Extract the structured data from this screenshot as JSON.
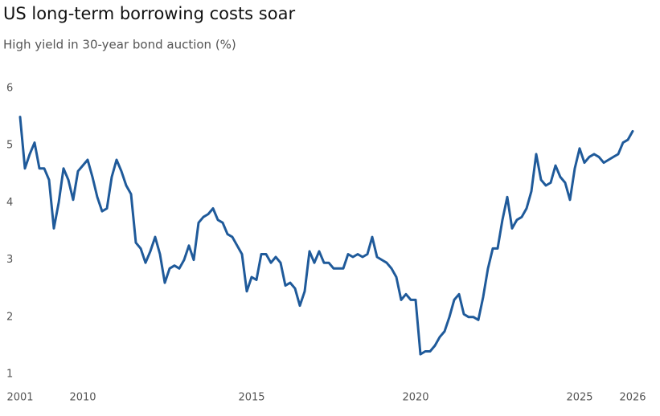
{
  "chart_data": {
    "type": "line",
    "title": "US long-term borrowing costs soar",
    "subtitle": "High yield in 30-year bond auction (%)",
    "categories": [
      "2001",
      null,
      null,
      null,
      null,
      null,
      null,
      null,
      null,
      null,
      null,
      null,
      null,
      "2010",
      null,
      null,
      null,
      null,
      null,
      null,
      null,
      null,
      null,
      null,
      null,
      null,
      null,
      null,
      null,
      null,
      null,
      null,
      null,
      null,
      null,
      null,
      null,
      null,
      null,
      null,
      null,
      null,
      null,
      null,
      null,
      null,
      null,
      null,
      "2015",
      null,
      null,
      null,
      null,
      null,
      null,
      null,
      null,
      null,
      null,
      null,
      null,
      null,
      null,
      null,
      null,
      null,
      null,
      null,
      null,
      null,
      null,
      null,
      null,
      null,
      null,
      null,
      null,
      null,
      null,
      null,
      null,
      null,
      "2020",
      null,
      null,
      null,
      null,
      null,
      null,
      null,
      null,
      null,
      null,
      null,
      null,
      null,
      null,
      null,
      null,
      null,
      null,
      null,
      null,
      null,
      null,
      null,
      null,
      null,
      null,
      null,
      null,
      null,
      null,
      null,
      null,
      null,
      "2025",
      null,
      null,
      null,
      null,
      null,
      null,
      null,
      null,
      null,
      null,
      "2026"
    ],
    "series": [
      {
        "name": "High yield",
        "color": "#1f5a9a",
        "values": [
          5.5,
          4.6,
          4.85,
          5.05,
          4.6,
          4.6,
          4.4,
          3.55,
          4.0,
          4.6,
          4.4,
          4.05,
          4.55,
          4.65,
          4.75,
          4.45,
          4.1,
          3.85,
          3.9,
          4.45,
          4.75,
          4.55,
          4.3,
          4.15,
          3.3,
          3.2,
          2.95,
          3.15,
          3.4,
          3.1,
          2.6,
          2.85,
          2.9,
          2.85,
          3.0,
          3.25,
          3.0,
          3.65,
          3.75,
          3.8,
          3.9,
          3.7,
          3.65,
          3.45,
          3.4,
          3.25,
          3.1,
          2.45,
          2.7,
          2.65,
          3.1,
          3.1,
          2.95,
          3.05,
          2.95,
          2.55,
          2.6,
          2.5,
          2.2,
          2.45,
          3.15,
          2.95,
          3.15,
          2.95,
          2.95,
          2.85,
          2.85,
          2.85,
          3.1,
          3.05,
          3.1,
          3.05,
          3.1,
          3.4,
          3.05,
          3.0,
          2.95,
          2.85,
          2.7,
          2.3,
          2.4,
          2.3,
          2.3,
          1.35,
          1.4,
          1.4,
          1.5,
          1.65,
          1.75,
          2.0,
          2.3,
          2.4,
          2.05,
          2.0,
          2.0,
          1.95,
          2.35,
          2.85,
          3.2,
          3.2,
          3.7,
          4.1,
          3.55,
          3.7,
          3.75,
          3.9,
          4.2,
          4.85,
          4.4,
          4.3,
          4.35,
          4.65,
          4.45,
          4.35,
          4.05,
          4.6,
          4.95,
          4.7,
          4.8,
          4.85,
          4.8,
          4.7,
          4.75,
          4.8,
          4.85,
          5.05,
          5.1,
          5.25
        ]
      }
    ],
    "ylim": [
      1,
      6
    ],
    "yticks": [
      1,
      2,
      3,
      4,
      5,
      6
    ],
    "grid": false
  }
}
